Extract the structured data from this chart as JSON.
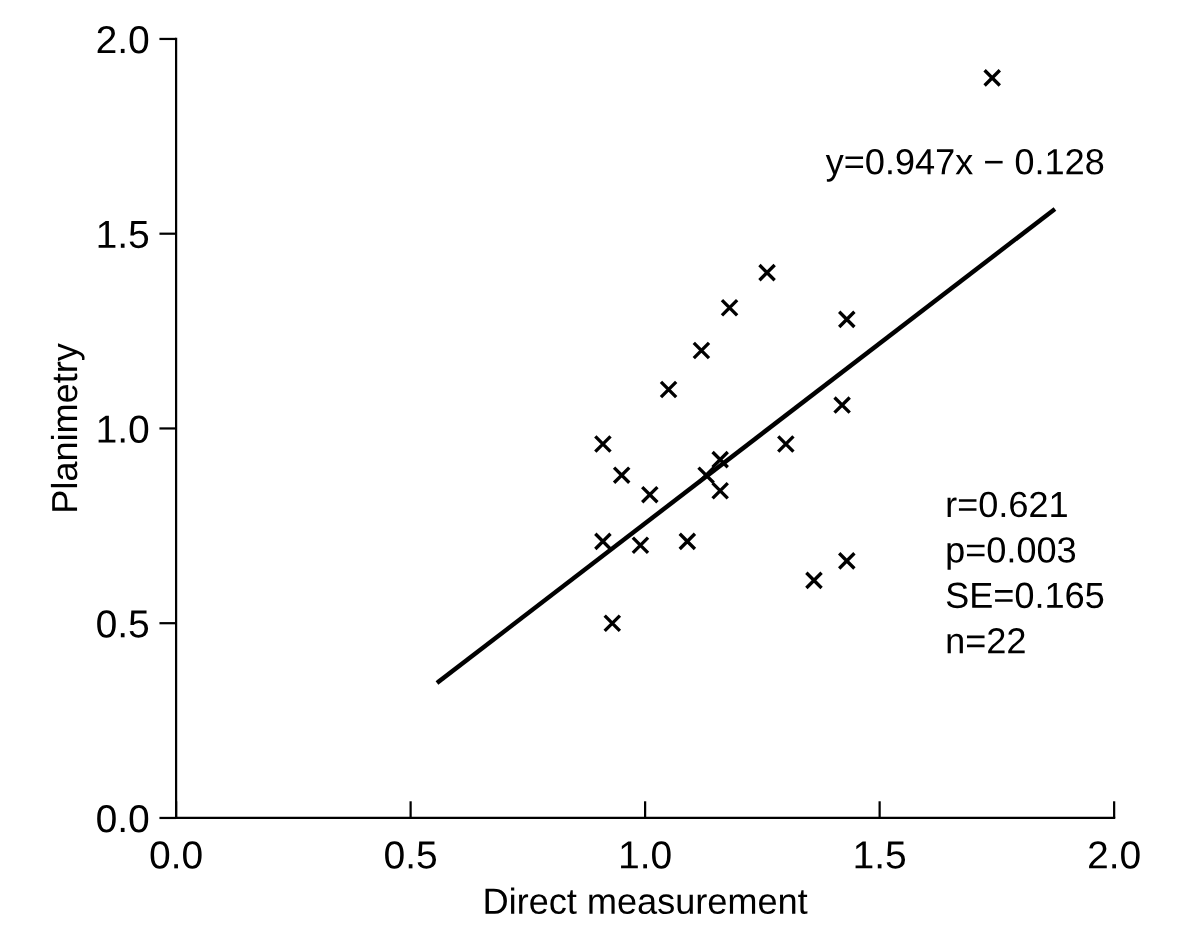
{
  "chart_data": {
    "type": "scatter",
    "xlabel": "Direct measurement",
    "ylabel": "Planimetry",
    "xlim": [
      0,
      2
    ],
    "ylim": [
      0,
      2
    ],
    "xticks": [
      {
        "value": 0,
        "label": "0.0"
      },
      {
        "value": 0.5,
        "label": "0.5"
      },
      {
        "value": 1,
        "label": "1.0"
      },
      {
        "value": 1.5,
        "label": "1.5"
      },
      {
        "value": 2,
        "label": "2.0"
      }
    ],
    "yticks": [
      {
        "value": 0,
        "label": "0.0"
      },
      {
        "value": 0.5,
        "label": "0.5"
      },
      {
        "value": 1,
        "label": "1.0"
      },
      {
        "value": 1.5,
        "label": "1.5"
      },
      {
        "value": 2,
        "label": "2.0"
      }
    ],
    "grid": false,
    "legend": false,
    "series": [
      {
        "marker": "cross",
        "color": "#000000",
        "x": [
          0.91,
          0.91,
          0.95,
          0.99,
          1.01,
          1.05,
          1.12,
          1.18,
          1.26,
          1.09,
          1.13,
          1.16,
          1.16,
          1.3,
          1.36,
          1.43,
          1.42,
          1.43,
          1.74,
          0.93
        ],
        "values": [
          0.96,
          0.71,
          0.88,
          0.7,
          0.83,
          1.1,
          1.2,
          1.31,
          1.4,
          0.71,
          0.88,
          0.92,
          0.84,
          0.96,
          0.61,
          0.66,
          1.06,
          1.28,
          1.9,
          0.5
        ]
      },
      {
        "type": "line",
        "marker": "none",
        "color": "#000000",
        "x": [
          0.56,
          1.87
        ],
        "values": [
          0.35,
          1.56
        ]
      }
    ],
    "annotations": [
      "y=0.947x − 0.128",
      "r=0.621\np=0.003\nSE=0.165\nn=22"
    ]
  }
}
